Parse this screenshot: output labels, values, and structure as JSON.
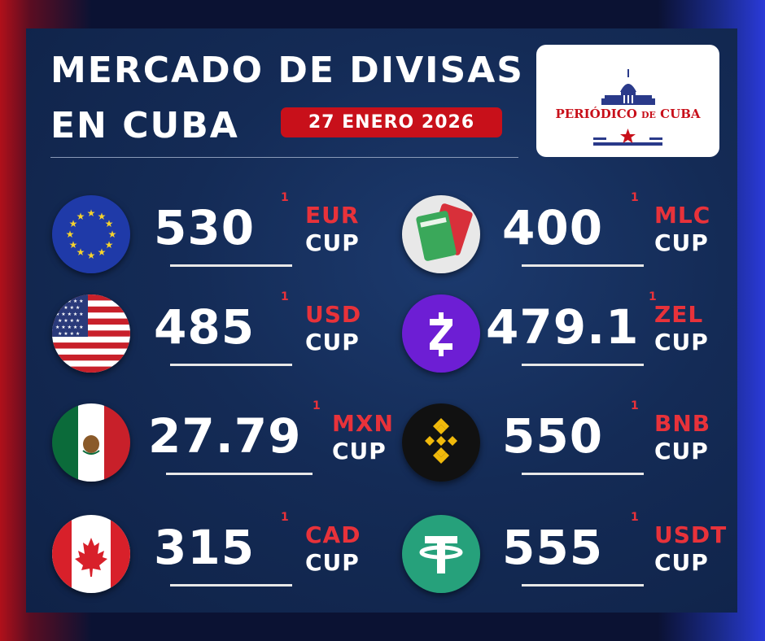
{
  "title": {
    "line1": "MERCADO DE DIVISAS",
    "line2": "EN CUBA"
  },
  "date": "27 ENERO 2026",
  "logo": {
    "name_a": "PERIÓDICO",
    "name_de": "DE",
    "name_b": "CUBA"
  },
  "colors": {
    "accent_red": "#c8101a",
    "panel_blue": "#142b56",
    "white": "#ffffff"
  },
  "rates": {
    "eur": {
      "value": "530",
      "sup": "1",
      "code": "EUR",
      "base": "CUP",
      "icon": "eu-flag-icon"
    },
    "usd": {
      "value": "485",
      "sup": "1",
      "code": "USD",
      "base": "CUP",
      "icon": "us-flag-icon"
    },
    "mxn": {
      "value": "27.79",
      "sup": "1",
      "code": "MXN",
      "base": "CUP",
      "icon": "mexico-flag-icon"
    },
    "cad": {
      "value": "315",
      "sup": "1",
      "code": "CAD",
      "base": "CUP",
      "icon": "canada-flag-icon"
    },
    "mlc": {
      "value": "400",
      "sup": "1",
      "code": "MLC",
      "base": "CUP",
      "icon": "bank-cards-icon"
    },
    "zel": {
      "value": "479.1",
      "sup": "1",
      "code": "ZEL",
      "base": "CUP",
      "icon": "zelle-icon"
    },
    "bnb": {
      "value": "550",
      "sup": "1",
      "code": "BNB",
      "base": "CUP",
      "icon": "binance-icon"
    },
    "usdt": {
      "value": "555",
      "sup": "1",
      "code": "USDT",
      "base": "CUP",
      "icon": "tether-icon"
    }
  }
}
